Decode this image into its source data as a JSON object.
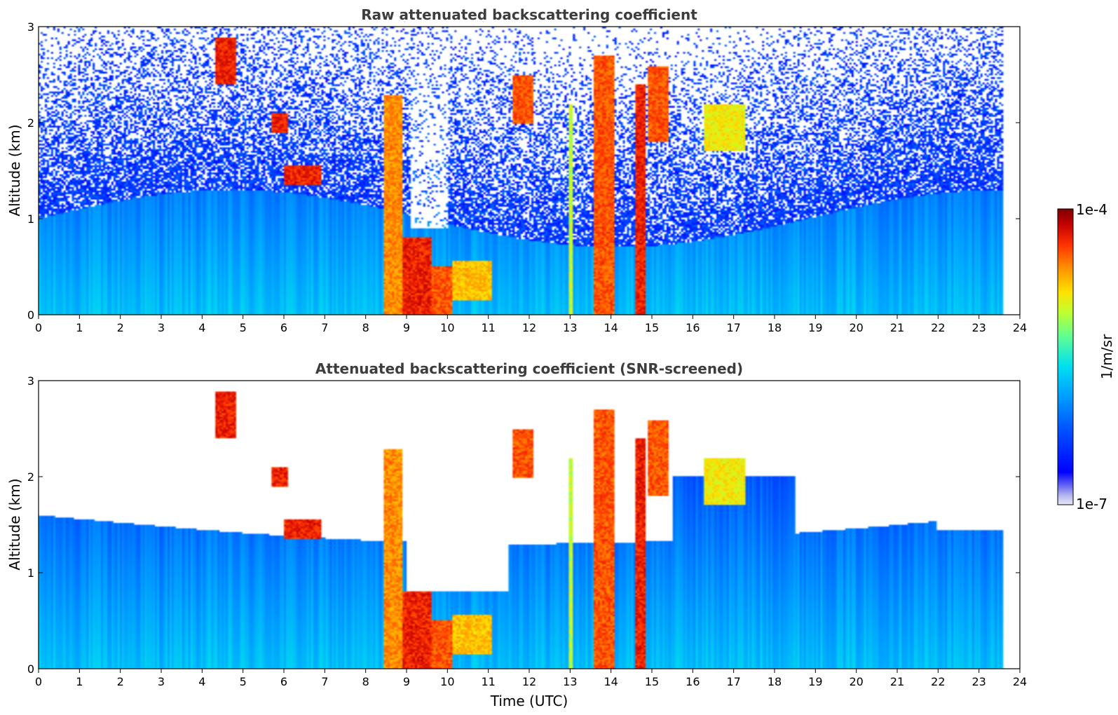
{
  "chart_data": [
    {
      "type": "heatmap",
      "title": "Raw attenuated backscattering coefficient",
      "xlabel": "",
      "ylabel": "Altitude (km)",
      "xlim": [
        0,
        24
      ],
      "ylim": [
        0,
        3
      ],
      "x_data_extent": [
        0,
        23.6
      ],
      "xticks": [
        "0",
        "1",
        "2",
        "3",
        "4",
        "5",
        "6",
        "7",
        "8",
        "9",
        "10",
        "11",
        "12",
        "13",
        "14",
        "15",
        "16",
        "17",
        "18",
        "19",
        "20",
        "21",
        "22",
        "23",
        "24"
      ],
      "yticks": [
        "0",
        "1",
        "2",
        "3"
      ],
      "screened": false
    },
    {
      "type": "heatmap",
      "title": "Attenuated backscattering coefficient (SNR-screened)",
      "xlabel": "Time (UTC)",
      "ylabel": "Altitude (km)",
      "xlim": [
        0,
        24
      ],
      "ylim": [
        0,
        3
      ],
      "x_data_extent": [
        0,
        23.6
      ],
      "xticks": [
        "0",
        "1",
        "2",
        "3",
        "4",
        "5",
        "6",
        "7",
        "8",
        "9",
        "10",
        "11",
        "12",
        "13",
        "14",
        "15",
        "16",
        "17",
        "18",
        "19",
        "20",
        "21",
        "22",
        "23",
        "24"
      ],
      "yticks": [
        "0",
        "1",
        "2",
        "3"
      ],
      "screened": true
    }
  ],
  "colorbar": {
    "label": "1/m/sr",
    "max_label": "1e-4",
    "min_label": "1e-7",
    "scale": "log",
    "range": [
      1e-07,
      0.0001
    ],
    "colormap": "jet"
  },
  "cloud_features": [
    {
      "x0": 8.45,
      "x1": 8.9,
      "y0": 0,
      "y1": 2.3,
      "level": 0.85
    },
    {
      "x0": 8.9,
      "x1": 9.6,
      "y0": 0,
      "y1": 0.8,
      "level": 0.95
    },
    {
      "x0": 9.6,
      "x1": 10.1,
      "y0": 0,
      "y1": 0.5,
      "level": 0.9
    },
    {
      "x0": 10.1,
      "x1": 11.1,
      "y0": 0.15,
      "y1": 0.55,
      "level": 0.8
    },
    {
      "x0": 13.6,
      "x1": 14.1,
      "y0": 0,
      "y1": 2.7,
      "level": 0.9
    },
    {
      "x0": 14.6,
      "x1": 14.85,
      "y0": 0,
      "y1": 2.4,
      "level": 0.95
    },
    {
      "x0": 12.95,
      "x1": 13.05,
      "y0": 0,
      "y1": 2.2,
      "level": 0.7
    },
    {
      "x0": 4.3,
      "x1": 4.8,
      "y0": 2.4,
      "y1": 2.9,
      "level": 0.95
    },
    {
      "x0": 5.7,
      "x1": 6.1,
      "y0": 1.9,
      "y1": 2.1,
      "level": 0.95
    },
    {
      "x0": 6.0,
      "x1": 6.9,
      "y0": 1.35,
      "y1": 1.55,
      "level": 0.95
    },
    {
      "x0": 11.6,
      "x1": 12.1,
      "y0": 2.0,
      "y1": 2.5,
      "level": 0.9
    },
    {
      "x0": 14.9,
      "x1": 15.4,
      "y0": 1.8,
      "y1": 2.6,
      "level": 0.9
    },
    {
      "x0": 16.3,
      "x1": 17.3,
      "y0": 1.7,
      "y1": 2.2,
      "level": 0.75
    }
  ],
  "colors": {
    "title": "#3d3d3d",
    "axis": "#000000",
    "background": "#ffffff"
  }
}
